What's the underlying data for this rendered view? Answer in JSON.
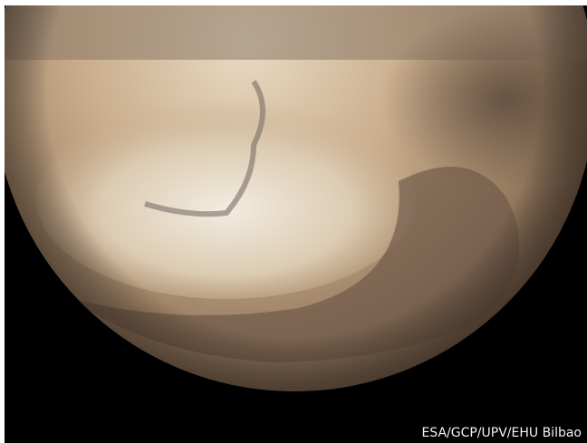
{
  "image": {
    "credit": "ESA/GCP/UPV/EHU Bilbao"
  }
}
